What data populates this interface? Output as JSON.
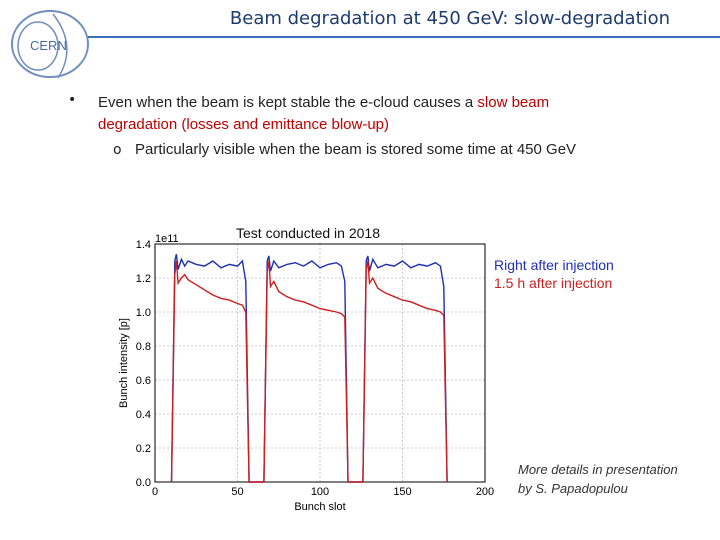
{
  "logo": {
    "text": "CERN"
  },
  "slide": {
    "title": "Beam degradation at 450 GeV: slow-degradation",
    "bullet_prefix": "Even when the beam is kept stable the e-cloud causes a ",
    "bullet_highlight": "slow beam degradation (losses and emittance blow-up)",
    "sub_bullet": "Particularly visible when the beam is stored some time at 450 GeV",
    "note_line1": "More details in presentation",
    "note_line2": "by S. Papadopulou"
  },
  "colors": {
    "blue_series": "#1f2fb3",
    "red_series": "#cc1f1f",
    "highlight": "#c00000"
  },
  "chart_data": {
    "type": "line",
    "title": "Test conducted in 2018",
    "xlabel": "Bunch slot",
    "ylabel": "Bunch intensity [p]",
    "y_multiplier_label": "1e11",
    "xlim": [
      0,
      200
    ],
    "ylim": [
      0.0,
      1.4
    ],
    "xticks": [
      "0",
      "50",
      "100",
      "150",
      "200"
    ],
    "yticks": [
      "0.0",
      "0.2",
      "0.4",
      "0.6",
      "0.8",
      "1.0",
      "1.2",
      "1.4"
    ],
    "grid": true,
    "series": [
      {
        "name": "Right after injection",
        "color": "#1f2fb3",
        "x": [
          10,
          12,
          13,
          14,
          16,
          18,
          20,
          25,
          30,
          35,
          40,
          45,
          50,
          53,
          55,
          56,
          57,
          66,
          68,
          69,
          70,
          72,
          75,
          80,
          85,
          90,
          95,
          100,
          105,
          110,
          113,
          115,
          116,
          117,
          126,
          128,
          129,
          130,
          132,
          135,
          140,
          145,
          150,
          155,
          160,
          165,
          170,
          173,
          175,
          176,
          177
        ],
        "y": [
          0.0,
          1.3,
          1.34,
          1.25,
          1.31,
          1.27,
          1.3,
          1.28,
          1.27,
          1.3,
          1.26,
          1.28,
          1.27,
          1.3,
          1.18,
          0.6,
          0.0,
          0.0,
          1.3,
          1.33,
          1.24,
          1.3,
          1.26,
          1.28,
          1.29,
          1.27,
          1.3,
          1.26,
          1.28,
          1.29,
          1.27,
          1.18,
          0.6,
          0.0,
          0.0,
          1.3,
          1.33,
          1.24,
          1.31,
          1.26,
          1.28,
          1.27,
          1.3,
          1.26,
          1.28,
          1.27,
          1.29,
          1.27,
          1.15,
          0.6,
          0.0
        ]
      },
      {
        "name": "1.5 h after injection",
        "color": "#cc1f1f",
        "x": [
          10,
          12,
          13,
          14,
          16,
          18,
          20,
          25,
          30,
          35,
          40,
          45,
          50,
          53,
          55,
          56,
          57,
          66,
          68,
          69,
          70,
          72,
          75,
          80,
          85,
          90,
          95,
          100,
          105,
          110,
          113,
          115,
          116,
          117,
          126,
          128,
          129,
          130,
          132,
          135,
          140,
          145,
          150,
          155,
          160,
          165,
          170,
          173,
          175,
          176,
          177
        ],
        "y": [
          0.0,
          1.22,
          1.3,
          1.17,
          1.2,
          1.22,
          1.19,
          1.16,
          1.13,
          1.1,
          1.08,
          1.07,
          1.05,
          1.04,
          1.0,
          0.5,
          0.0,
          0.0,
          1.24,
          1.3,
          1.15,
          1.18,
          1.12,
          1.09,
          1.07,
          1.06,
          1.04,
          1.02,
          1.01,
          1.0,
          0.99,
          0.97,
          0.5,
          0.0,
          0.0,
          1.25,
          1.3,
          1.17,
          1.2,
          1.14,
          1.11,
          1.09,
          1.07,
          1.06,
          1.04,
          1.02,
          1.01,
          1.0,
          0.98,
          0.5,
          0.0
        ]
      }
    ]
  }
}
